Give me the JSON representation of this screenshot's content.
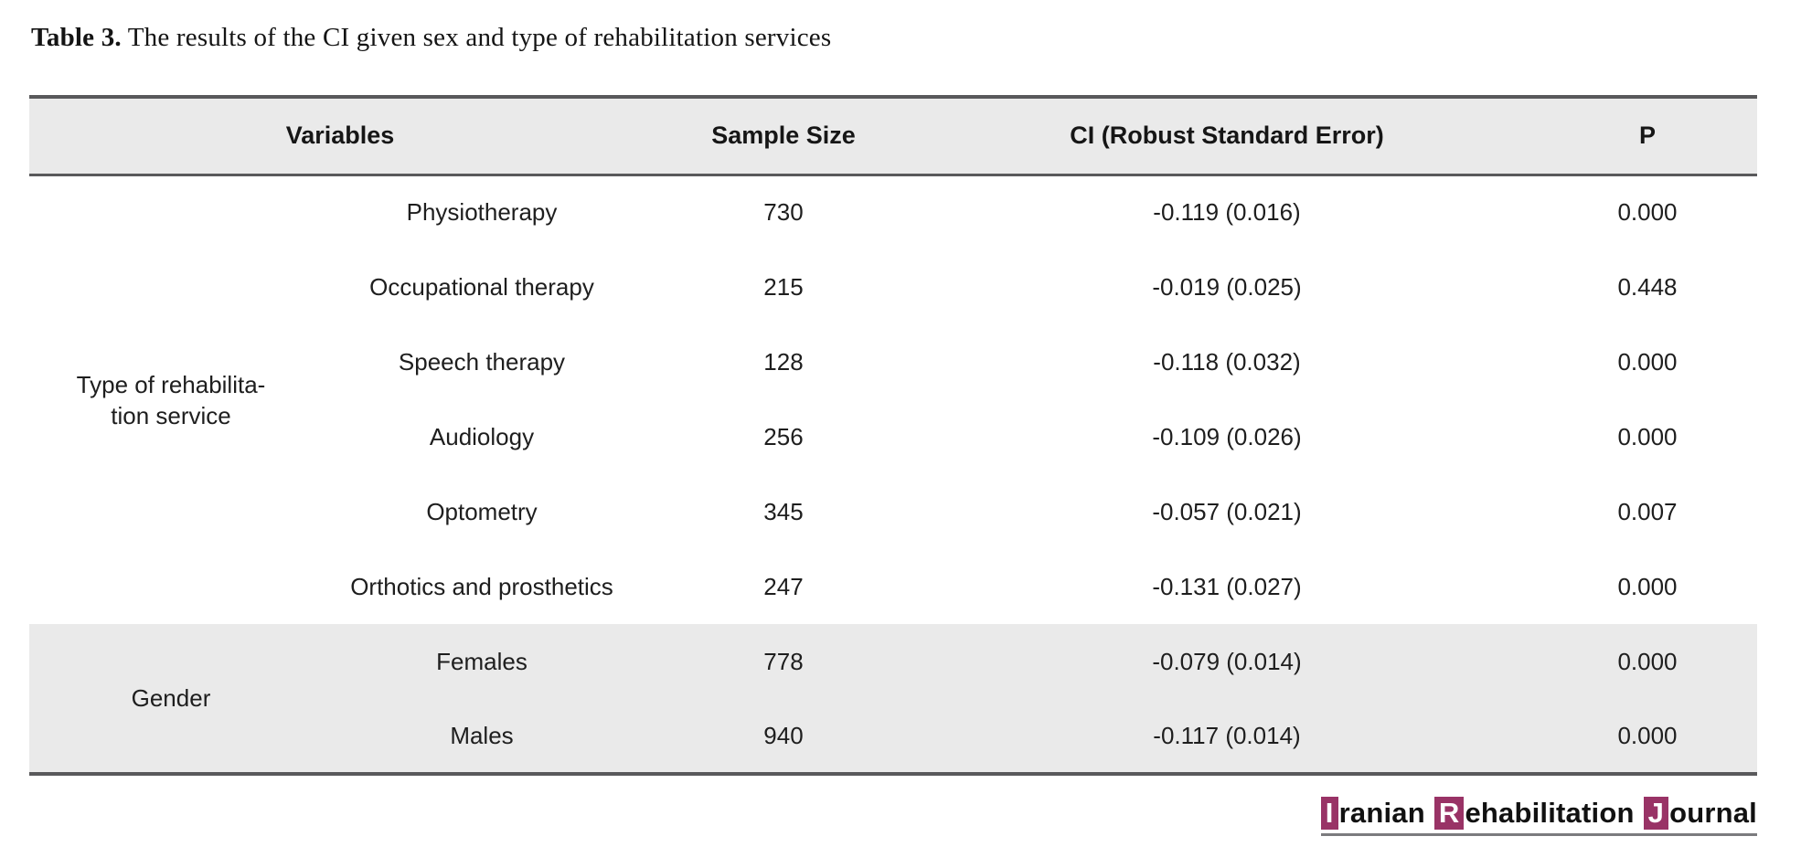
{
  "caption": {
    "label": "Table 3.",
    "text": " The results of the CI given sex and type of rehabilitation services"
  },
  "table": {
    "headers": {
      "variables": "Variables",
      "sample_size": "Sample Size",
      "ci": "CI (Robust Standard Error)",
      "p": "P"
    },
    "groups": [
      {
        "label_line1": "Type of rehabilita-",
        "label_line2": "tion service",
        "rows": [
          {
            "variable": "Physiotherapy",
            "sample_size": "730",
            "ci": "-0.119 (0.016)",
            "p": "0.000"
          },
          {
            "variable": "Occupational therapy",
            "sample_size": "215",
            "ci": "-0.019 (0.025)",
            "p": "0.448"
          },
          {
            "variable": "Speech therapy",
            "sample_size": "128",
            "ci": "-0.118 (0.032)",
            "p": "0.000"
          },
          {
            "variable": "Audiology",
            "sample_size": "256",
            "ci": "-0.109 (0.026)",
            "p": "0.000"
          },
          {
            "variable": "Optometry",
            "sample_size": "345",
            "ci": "-0.057 (0.021)",
            "p": "0.007"
          },
          {
            "variable": "Orthotics and prosthetics",
            "sample_size": "247",
            "ci": "-0.131 (0.027)",
            "p": "0.000"
          }
        ]
      },
      {
        "label_line1": "Gender",
        "rows": [
          {
            "variable": "Females",
            "sample_size": "778",
            "ci": "-0.079 (0.014)",
            "p": "0.000"
          },
          {
            "variable": "Males",
            "sample_size": "940",
            "ci": "-0.117 (0.014)",
            "p": "0.000"
          }
        ]
      }
    ]
  },
  "logo": {
    "word1_initial": "I",
    "word1_rest": "ranian",
    "word2_initial": "R",
    "word2_rest": "ehabilitation",
    "word3_initial": "J",
    "word3_rest": "ournal"
  },
  "colors": {
    "accent_plum": "#993366",
    "band_gray": "#EAEAEA",
    "rule_gray": "#59595B",
    "logo_underline": "#7B7B7E"
  }
}
